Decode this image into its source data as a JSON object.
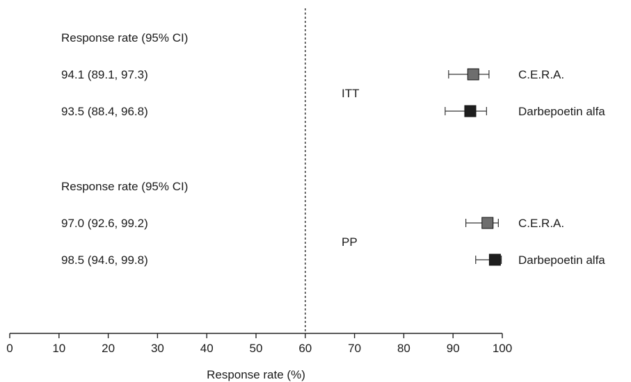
{
  "chart_data": {
    "type": "forest",
    "xlabel": "Response rate (%)",
    "xlim": [
      0,
      100
    ],
    "xticks": [
      0,
      10,
      20,
      30,
      40,
      50,
      60,
      70,
      80,
      90,
      100
    ],
    "reference_line": 60,
    "groups": [
      {
        "label": "ITT",
        "header": "Response rate (95% CI)",
        "rows": [
          {
            "label": "94.1 (89.1, 97.3)",
            "series": "C.E.R.A.",
            "estimate": 94.1,
            "lower": 89.1,
            "upper": 97.3,
            "color": "#6e6e6e"
          },
          {
            "label": "93.5 (88.4, 96.8)",
            "series": "Darbepoetin alfa",
            "estimate": 93.5,
            "lower": 88.4,
            "upper": 96.8,
            "color": "#1e1e1e"
          }
        ]
      },
      {
        "label": "PP",
        "header": "Response rate (95% CI)",
        "rows": [
          {
            "label": "97.0 (92.6, 99.2)",
            "series": "C.E.R.A.",
            "estimate": 97.0,
            "lower": 92.6,
            "upper": 99.2,
            "color": "#6e6e6e"
          },
          {
            "label": "98.5 (94.6, 99.8)",
            "series": "Darbepoetin alfa",
            "estimate": 98.5,
            "lower": 94.6,
            "upper": 99.8,
            "color": "#1e1e1e"
          }
        ]
      }
    ]
  }
}
